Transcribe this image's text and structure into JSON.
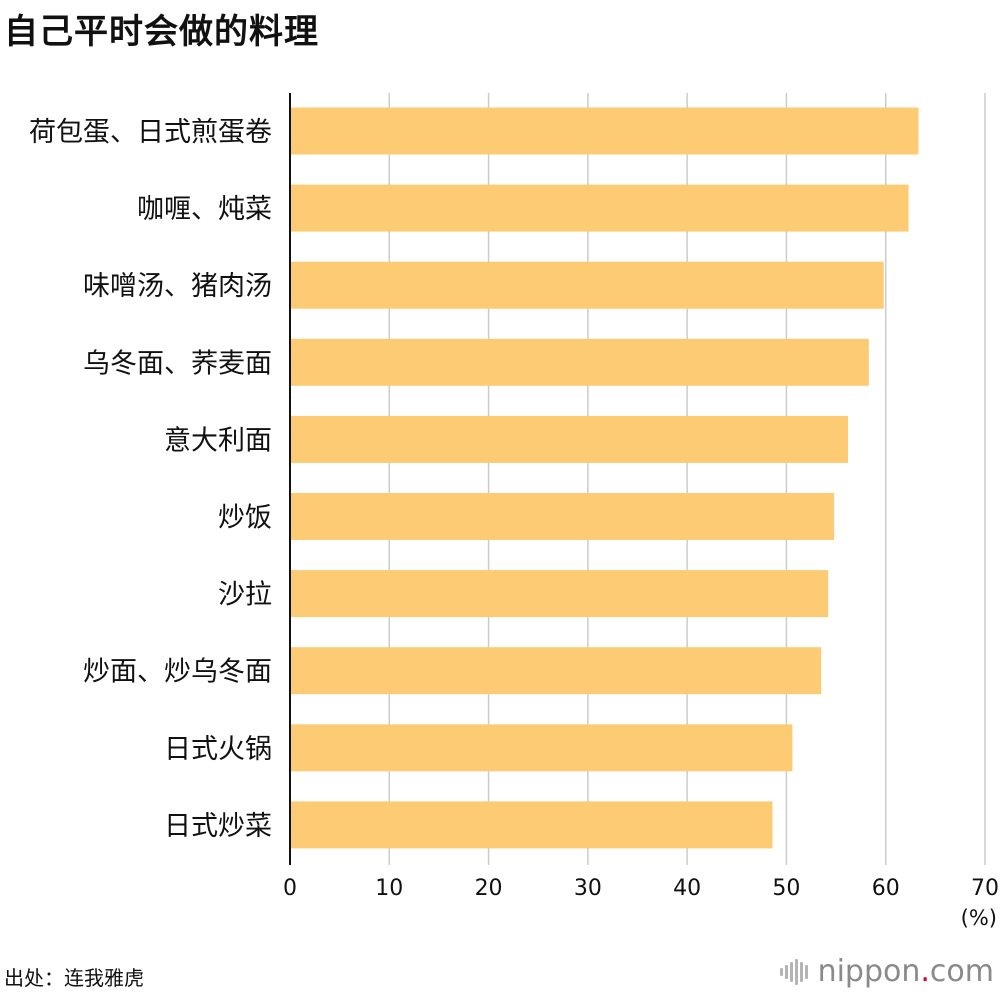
{
  "title": "自己平时会做的料理",
  "source": "出处：连我雅虎",
  "brand": {
    "name_main": "nippon",
    "dot": ".",
    "tld": "com",
    "icon": "sound-wave-icon"
  },
  "colors": {
    "bar": "#FCCB74",
    "grid": "#CCCCCC",
    "axis": "#111111",
    "brand_dot": "#E0002A"
  },
  "chart_data": {
    "type": "bar",
    "orientation": "horizontal",
    "title": "自己平时会做的料理",
    "xlabel": "",
    "ylabel": "",
    "unit": "(%)",
    "xlim": [
      0,
      70
    ],
    "xticks": [
      0,
      10,
      20,
      30,
      40,
      50,
      60,
      70
    ],
    "grid": true,
    "categories": [
      "荷包蛋、日式煎蛋卷",
      "咖喱、炖菜",
      "味噌汤、猪肉汤",
      "乌冬面、荞麦面",
      "意大利面",
      "炒饭",
      "沙拉",
      "炒面、炒乌冬面",
      "日式火锅",
      "日式炒菜"
    ],
    "values": [
      63.3,
      62.3,
      59.8,
      58.3,
      56.2,
      54.8,
      54.2,
      53.5,
      50.6,
      48.6
    ]
  }
}
